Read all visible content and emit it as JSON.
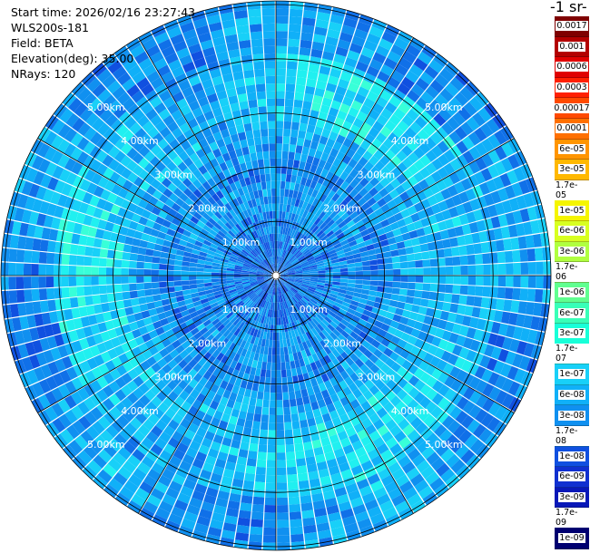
{
  "info": {
    "start_time": "Start time: 2026/02/16 23:27:43",
    "device": "WLS200s-181",
    "field": "Field: BETA",
    "elevation": "Elevation(deg): 35.00",
    "nrays": "NRays: 120"
  },
  "colorbar": {
    "unit_fragment": "-1 sr-",
    "labels": [
      "0.0017",
      "0.001",
      "0.0006",
      "0.0003",
      "0.00017",
      "0.0001",
      "6e-05",
      "3e-05",
      "1.7e-05",
      "1e-05",
      "6e-06",
      "3e-06",
      "1.7e-06",
      "1e-06",
      "6e-07",
      "3e-07",
      "1.7e-07",
      "1e-07",
      "6e-08",
      "3e-08",
      "1.7e-08",
      "1e-08",
      "6e-09",
      "3e-09",
      "1.7e-09",
      "1e-09"
    ],
    "colors": [
      "#7f0000",
      "#b30000",
      "#e00000",
      "#ff2000",
      "#ff4a00",
      "#ff7000",
      "#ff9500",
      "#ffb800",
      "#ffd800",
      "#f5f500",
      "#d8ff20",
      "#b0ff40",
      "#88ff68",
      "#60ff90",
      "#38ffb8",
      "#18ffd8",
      "#20f0f0",
      "#18d0f8",
      "#10b0f8",
      "#1090f0",
      "#1070e8",
      "#1050e0",
      "#1030d0",
      "#0818b8",
      "#000898",
      "#000070"
    ]
  },
  "range_labels": [
    "1.00km",
    "2.00km",
    "3.00km",
    "4.00km",
    "5.00km"
  ]
}
